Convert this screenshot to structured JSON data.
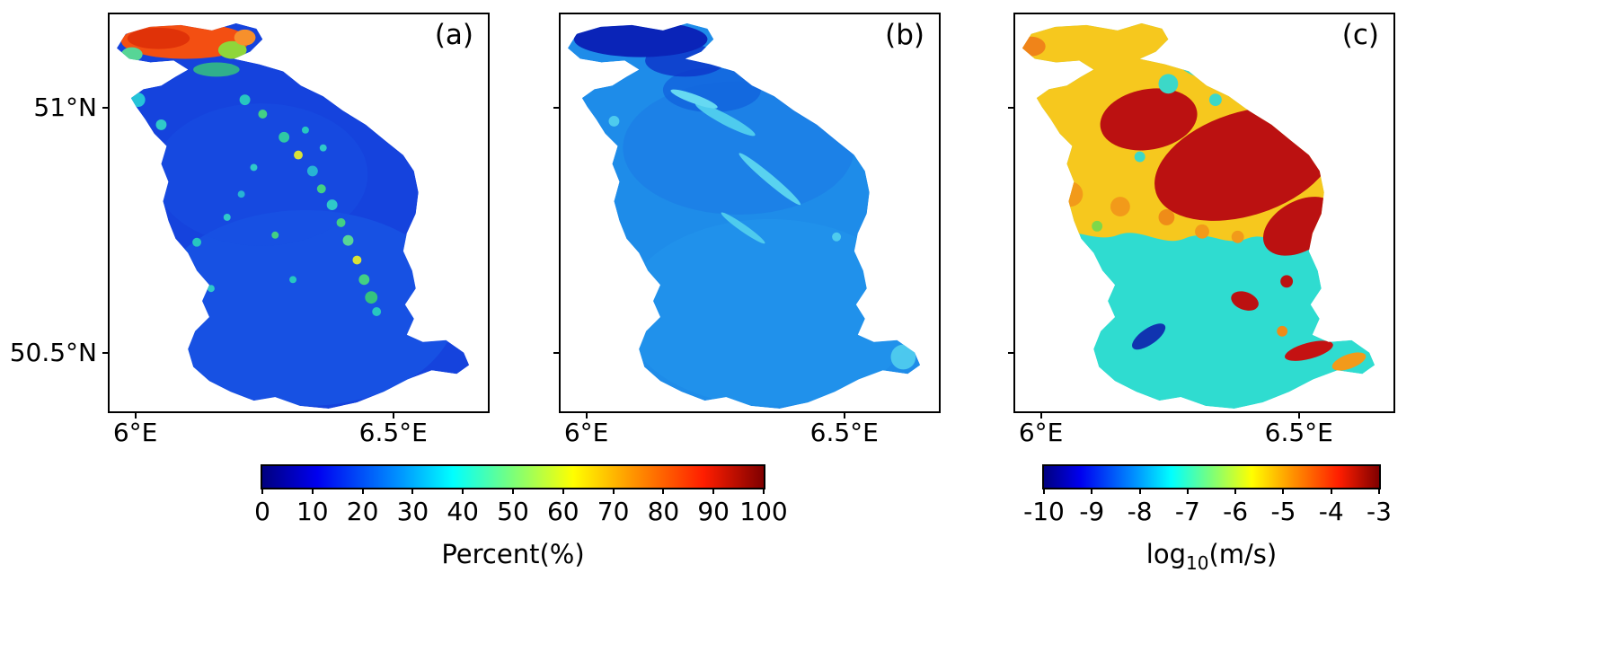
{
  "figure": {
    "panels": [
      {
        "id": "a",
        "label": "(a)"
      },
      {
        "id": "b",
        "label": "(b)"
      },
      {
        "id": "c",
        "label": "(c)"
      }
    ],
    "x_tick_labels": [
      "6°E",
      "6.5°E"
    ],
    "y_tick_labels": [
      "51°N",
      "50.5°N"
    ],
    "colorbar_percent": {
      "title": "Percent(%)",
      "tick_labels": [
        "0",
        "10",
        "20",
        "30",
        "40",
        "50",
        "60",
        "70",
        "80",
        "90",
        "100"
      ],
      "min": 0,
      "max": 100,
      "colormap": "jet"
    },
    "colorbar_log": {
      "title_prefix": "log",
      "title_subscript": "10",
      "title_suffix": "(m/s)",
      "tick_labels": [
        "-10",
        "-9",
        "-8",
        "-7",
        "-6",
        "-5",
        "-4",
        "-3"
      ],
      "min": -10,
      "max": -3,
      "colormap": "jet"
    },
    "colormap_jet_stops": [
      "#00007f",
      "#0000ff",
      "#00ffff",
      "#7cff79",
      "#ffff00",
      "#ff1e00",
      "#7f0000"
    ]
  },
  "chart_data": [
    {
      "type": "heatmap",
      "panel": "(a)",
      "x_ticks": [
        "6°E",
        "6.5°E"
      ],
      "y_ticks": [
        "51°N",
        "50.5°N"
      ],
      "colorbar": {
        "label": "Percent(%)",
        "range": [
          0,
          100
        ],
        "colormap": "jet"
      },
      "summary": "Catchment raster mostly 5-15% (dark royal blue); 70-100% (orange/red) zone fills the elongated northwest lobe; scattered 30-60% (cyan/green/yellow) cells form a NE-SW diagonal band through the middle"
    },
    {
      "type": "heatmap",
      "panel": "(b)",
      "x_ticks": [
        "6°E",
        "6.5°E"
      ],
      "y_ticks": [
        "51°N",
        "50.5°N"
      ],
      "colorbar": {
        "label": "Percent(%)",
        "range": [
          0,
          100
        ],
        "colormap": "jet"
      },
      "summary": "Same catchment, smoother field mostly 20-30% (medium blue); darkest 0-10% (navy) in the northwest lobe; thin lighter cyan streaks along valley lines; slightly lighter blue in the south"
    },
    {
      "type": "heatmap",
      "panel": "(c)",
      "x_ticks": [
        "6°E",
        "6.5°E"
      ],
      "y_ticks": [
        "51°N",
        "50.5°N"
      ],
      "colorbar": {
        "label": "log10(m/s)",
        "range": [
          -10,
          -3
        ],
        "colormap": "jet"
      },
      "summary": "Log10 conductivity map: northern half around -6 to -5 (yellow/orange) with large -4 to -3 (dark red) bodies; southern half near -8 (turquoise/cyan) with small red and orange patches in the southeast and a small -10 (dark blue) sliver in the southwest"
    }
  ]
}
